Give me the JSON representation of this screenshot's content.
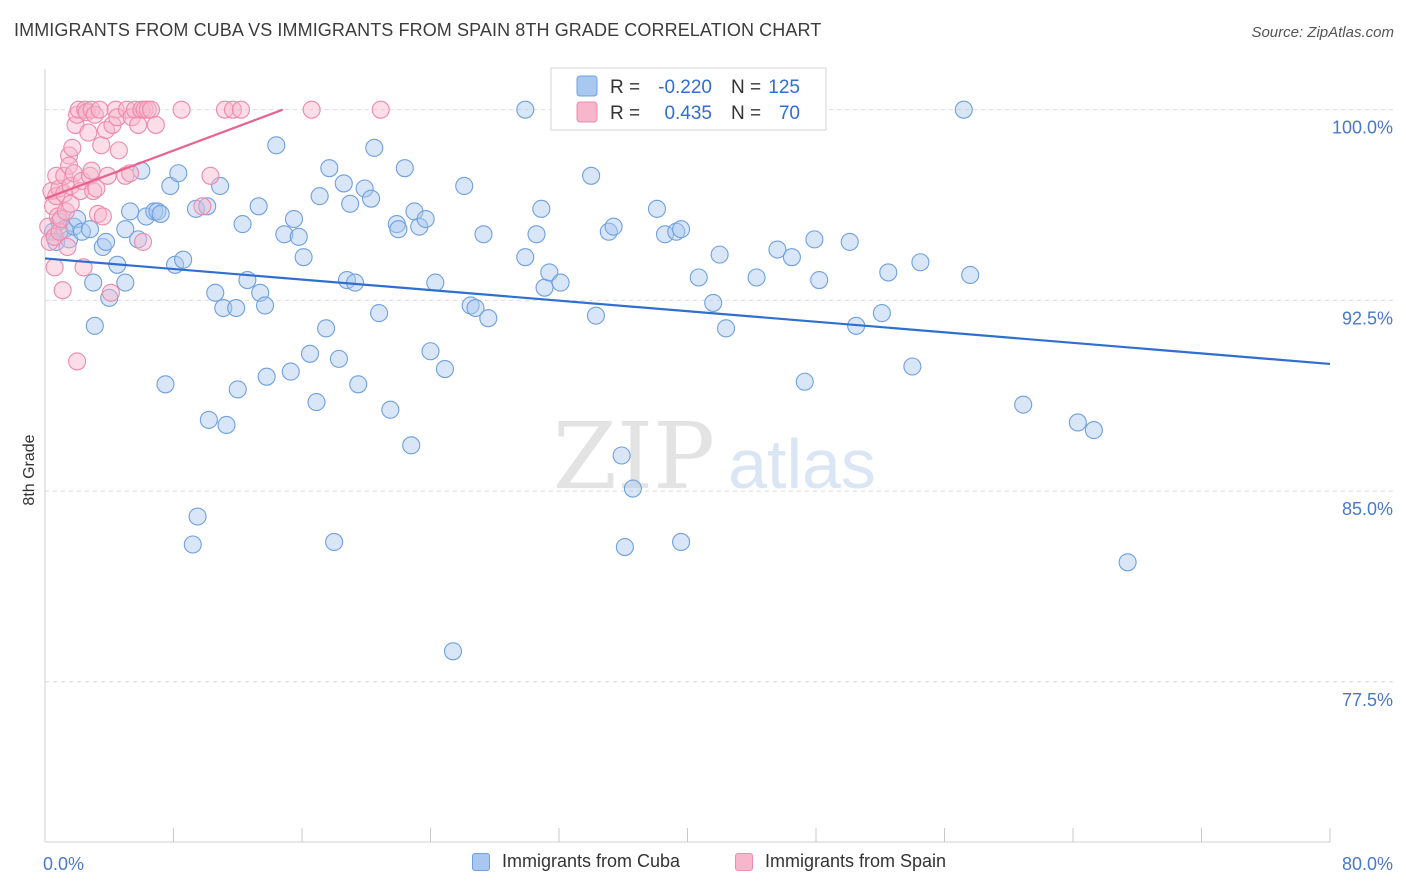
{
  "title": "IMMIGRANTS FROM CUBA VS IMMIGRANTS FROM SPAIN 8TH GRADE CORRELATION CHART",
  "source": "Source: ZipAtlas.com",
  "watermark": {
    "zip": "ZIP",
    "atlas": "atlas"
  },
  "legend_box": {
    "cuba": {
      "r_label": "R =",
      "r_value": "-0.220",
      "n_label": "N =",
      "n_value": "125"
    },
    "spain": {
      "r_label": "R =",
      "r_value": "0.435",
      "n_label": "N =",
      "n_value": "70"
    }
  },
  "legend_bottom": {
    "cuba": "Immigrants from Cuba",
    "spain": "Immigrants from Spain"
  },
  "colors": {
    "cuba_fill": "#a9c8f0",
    "cuba_stroke": "#6fa0df",
    "cuba_line": "#2f6fcf",
    "spain_fill": "#f7b6cb",
    "spain_stroke": "#ee8aab",
    "spain_line": "#e8638d",
    "axis_text": "#4a78c8",
    "grid": "#dcdcdc"
  },
  "chart_data": {
    "type": "scatter",
    "title": "IMMIGRANTS FROM CUBA VS IMMIGRANTS FROM SPAIN 8TH GRADE CORRELATION CHART",
    "xlabel": "",
    "ylabel": "8th Grade",
    "xlim": [
      0,
      80
    ],
    "ylim": [
      71.2,
      101.6
    ],
    "x_tick_labels": [
      "0.0%",
      "80.0%"
    ],
    "y_ticks": [
      77.5,
      85.0,
      92.5,
      100.0
    ],
    "y_tick_labels": [
      "77.5%",
      "85.0%",
      "92.5%",
      "100.0%"
    ],
    "grid": true,
    "legend": "top-center",
    "series": [
      {
        "name": "Immigrants from Cuba",
        "r": -0.22,
        "n": 125,
        "trend": {
          "x": [
            0,
            80
          ],
          "y": [
            94.15,
            90.0
          ]
        },
        "points": [
          [
            0.5,
            95.2
          ],
          [
            0.7,
            94.8
          ],
          [
            0.9,
            95.6
          ],
          [
            1.2,
            95.3
          ],
          [
            1.5,
            94.9
          ],
          [
            1.8,
            95.4
          ],
          [
            2.0,
            95.7
          ],
          [
            2.3,
            95.2
          ],
          [
            2.8,
            95.3
          ],
          [
            3.0,
            93.2
          ],
          [
            3.1,
            91.5
          ],
          [
            3.6,
            94.6
          ],
          [
            3.8,
            94.8
          ],
          [
            4.0,
            92.6
          ],
          [
            4.5,
            93.9
          ],
          [
            5.0,
            95.3
          ],
          [
            5.0,
            93.2
          ],
          [
            5.3,
            96.0
          ],
          [
            5.8,
            94.9
          ],
          [
            6.0,
            97.6
          ],
          [
            6.3,
            95.8
          ],
          [
            6.8,
            96.0
          ],
          [
            7.0,
            96.0
          ],
          [
            7.2,
            95.9
          ],
          [
            7.5,
            89.2
          ],
          [
            7.8,
            97.0
          ],
          [
            8.1,
            93.9
          ],
          [
            8.3,
            97.5
          ],
          [
            8.6,
            94.1
          ],
          [
            9.4,
            96.1
          ],
          [
            9.5,
            84.0
          ],
          [
            9.2,
            82.9
          ],
          [
            10.1,
            96.2
          ],
          [
            10.2,
            87.8
          ],
          [
            10.6,
            92.8
          ],
          [
            10.9,
            97.0
          ],
          [
            11.1,
            92.2
          ],
          [
            11.3,
            87.6
          ],
          [
            11.9,
            92.2
          ],
          [
            12.0,
            89.0
          ],
          [
            12.3,
            95.5
          ],
          [
            12.6,
            93.3
          ],
          [
            13.3,
            96.2
          ],
          [
            13.4,
            92.8
          ],
          [
            13.7,
            92.3
          ],
          [
            13.8,
            89.5
          ],
          [
            14.4,
            98.6
          ],
          [
            14.9,
            95.1
          ],
          [
            15.3,
            89.7
          ],
          [
            15.5,
            95.7
          ],
          [
            15.8,
            95.0
          ],
          [
            16.1,
            94.2
          ],
          [
            16.5,
            90.4
          ],
          [
            16.9,
            88.5
          ],
          [
            17.1,
            96.6
          ],
          [
            17.5,
            91.4
          ],
          [
            17.7,
            97.7
          ],
          [
            18.0,
            83.0
          ],
          [
            18.3,
            90.2
          ],
          [
            18.6,
            97.1
          ],
          [
            18.8,
            93.3
          ],
          [
            19.0,
            96.3
          ],
          [
            19.3,
            93.2
          ],
          [
            19.5,
            89.2
          ],
          [
            19.9,
            96.9
          ],
          [
            20.3,
            96.5
          ],
          [
            20.5,
            98.5
          ],
          [
            20.8,
            92.0
          ],
          [
            21.5,
            88.2
          ],
          [
            21.9,
            95.5
          ],
          [
            22.0,
            95.3
          ],
          [
            22.4,
            97.7
          ],
          [
            22.8,
            86.8
          ],
          [
            23.0,
            96.0
          ],
          [
            23.3,
            95.4
          ],
          [
            23.7,
            95.7
          ],
          [
            24.0,
            90.5
          ],
          [
            24.3,
            93.2
          ],
          [
            24.9,
            89.8
          ],
          [
            25.4,
            78.7
          ],
          [
            26.1,
            97.0
          ],
          [
            26.5,
            92.3
          ],
          [
            26.8,
            92.2
          ],
          [
            27.3,
            95.1
          ],
          [
            27.6,
            91.8
          ],
          [
            29.9,
            94.2
          ],
          [
            29.9,
            100.0
          ],
          [
            30.6,
            95.1
          ],
          [
            30.9,
            96.1
          ],
          [
            31.1,
            93.0
          ],
          [
            31.4,
            93.6
          ],
          [
            32.1,
            93.2
          ],
          [
            34.0,
            97.4
          ],
          [
            34.3,
            91.9
          ],
          [
            35.1,
            95.2
          ],
          [
            35.4,
            95.4
          ],
          [
            35.9,
            86.4
          ],
          [
            36.1,
            82.8
          ],
          [
            36.6,
            85.1
          ],
          [
            38.1,
            96.1
          ],
          [
            38.6,
            95.1
          ],
          [
            39.3,
            95.2
          ],
          [
            39.6,
            95.3
          ],
          [
            39.6,
            83.0
          ],
          [
            40.7,
            93.4
          ],
          [
            41.6,
            92.4
          ],
          [
            42.0,
            94.3
          ],
          [
            42.4,
            91.4
          ],
          [
            44.3,
            93.4
          ],
          [
            45.6,
            94.5
          ],
          [
            46.5,
            94.2
          ],
          [
            47.3,
            89.3
          ],
          [
            47.9,
            94.9
          ],
          [
            48.2,
            93.3
          ],
          [
            50.1,
            94.8
          ],
          [
            50.5,
            91.5
          ],
          [
            52.1,
            92.0
          ],
          [
            52.5,
            93.6
          ],
          [
            54.0,
            89.9
          ],
          [
            54.5,
            94.0
          ],
          [
            57.2,
            100.0
          ],
          [
            57.6,
            93.5
          ],
          [
            60.9,
            88.4
          ],
          [
            64.3,
            87.7
          ],
          [
            65.3,
            87.4
          ],
          [
            67.4,
            82.2
          ]
        ]
      },
      {
        "name": "Immigrants from Spain",
        "r": 0.435,
        "n": 70,
        "trend": {
          "x": [
            0,
            14.8
          ],
          "y": [
            96.5,
            100.0
          ]
        },
        "points": [
          [
            0.2,
            95.4
          ],
          [
            0.3,
            94.8
          ],
          [
            0.4,
            96.8
          ],
          [
            0.5,
            96.2
          ],
          [
            0.6,
            95.0
          ],
          [
            0.6,
            93.8
          ],
          [
            0.7,
            97.4
          ],
          [
            0.7,
            96.6
          ],
          [
            0.8,
            95.8
          ],
          [
            0.9,
            95.2
          ],
          [
            0.9,
            96.9
          ],
          [
            1.0,
            95.7
          ],
          [
            1.1,
            92.9
          ],
          [
            1.2,
            96.7
          ],
          [
            1.2,
            97.4
          ],
          [
            1.3,
            96.0
          ],
          [
            1.4,
            94.6
          ],
          [
            1.5,
            98.2
          ],
          [
            1.5,
            97.8
          ],
          [
            1.6,
            96.3
          ],
          [
            1.6,
            97.0
          ],
          [
            1.7,
            98.5
          ],
          [
            1.8,
            97.5
          ],
          [
            1.9,
            99.4
          ],
          [
            2.0,
            90.1
          ],
          [
            2.0,
            99.8
          ],
          [
            2.1,
            100.0
          ],
          [
            2.2,
            96.8
          ],
          [
            2.3,
            97.2
          ],
          [
            2.4,
            93.8
          ],
          [
            2.5,
            100.0
          ],
          [
            2.6,
            99.9
          ],
          [
            2.7,
            99.1
          ],
          [
            2.8,
            97.4
          ],
          [
            2.9,
            97.6
          ],
          [
            2.9,
            100.0
          ],
          [
            3.0,
            96.8
          ],
          [
            3.1,
            99.8
          ],
          [
            3.2,
            96.9
          ],
          [
            3.3,
            95.9
          ],
          [
            3.4,
            100.0
          ],
          [
            3.5,
            98.6
          ],
          [
            3.6,
            95.8
          ],
          [
            3.8,
            99.2
          ],
          [
            3.9,
            97.4
          ],
          [
            4.1,
            92.8
          ],
          [
            4.2,
            99.4
          ],
          [
            4.4,
            100.0
          ],
          [
            4.5,
            99.7
          ],
          [
            4.6,
            98.4
          ],
          [
            5.0,
            97.4
          ],
          [
            5.1,
            100.0
          ],
          [
            5.3,
            97.5
          ],
          [
            5.4,
            99.7
          ],
          [
            5.6,
            100.0
          ],
          [
            5.8,
            99.4
          ],
          [
            6.0,
            100.0
          ],
          [
            6.1,
            94.8
          ],
          [
            6.2,
            100.0
          ],
          [
            6.4,
            100.0
          ],
          [
            6.6,
            100.0
          ],
          [
            6.9,
            99.4
          ],
          [
            8.5,
            100.0
          ],
          [
            9.8,
            96.2
          ],
          [
            10.3,
            97.4
          ],
          [
            11.2,
            100.0
          ],
          [
            11.7,
            100.0
          ],
          [
            12.2,
            100.0
          ],
          [
            16.6,
            100.0
          ],
          [
            20.9,
            100.0
          ]
        ]
      }
    ]
  }
}
